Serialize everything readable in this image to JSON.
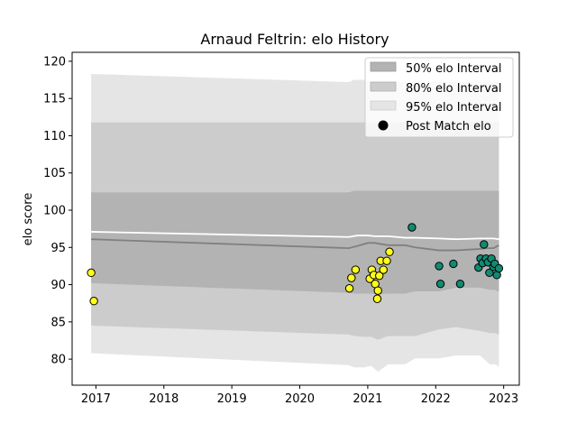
{
  "colors": {
    "band50": "#b3b3b3",
    "band80": "#cccccc",
    "band95": "#e5e5e5",
    "pre_match_line": "#ffffff",
    "post_match_line": "#808080",
    "player_a_points": "#ffff1a",
    "player_b_points": "#128a73",
    "point_edge": "#000000"
  },
  "chart_data": {
    "type": "scatter",
    "title": "Arnaud Feltrin: elo History",
    "xlabel": "",
    "ylabel": "elo score",
    "xlim": [
      2016.65,
      2023.23
    ],
    "ylim": [
      76.5,
      121.2
    ],
    "xticks": [
      2017,
      2018,
      2019,
      2020,
      2021,
      2022,
      2023
    ],
    "yticks": [
      80,
      85,
      90,
      95,
      100,
      105,
      110,
      115,
      120
    ],
    "grid": false,
    "legend_position": "top-right",
    "legend": [
      "50% elo Interval",
      "80% elo Interval",
      "95% elo Interval",
      "Post Match elo"
    ],
    "bands_x": [
      2016.93,
      2020.72,
      2020.8,
      2020.95,
      2021.05,
      2021.15,
      2021.3,
      2021.55,
      2021.7,
      2022.05,
      2022.3,
      2022.65,
      2022.8,
      2022.88,
      2022.93
    ],
    "band95": {
      "upper": [
        118.3,
        117.2,
        117.5,
        117.5,
        117.2,
        117.2,
        117.2,
        117.2,
        117.2,
        117.2,
        117.2,
        117.2,
        117.2,
        117.2,
        117.2
      ],
      "lower": [
        80.8,
        79.2,
        78.9,
        78.9,
        79.1,
        78.3,
        79.3,
        79.3,
        80.1,
        80.1,
        80.5,
        80.5,
        79.3,
        79.3,
        79.0
      ]
    },
    "band80": {
      "upper": [
        111.8,
        111.8,
        111.8,
        111.8,
        111.8,
        111.8,
        111.8,
        111.8,
        111.8,
        111.8,
        111.8,
        111.8,
        111.8,
        111.8,
        111.8
      ],
      "lower": [
        84.5,
        83.3,
        83.1,
        83.0,
        83.0,
        82.6,
        83.1,
        83.1,
        83.1,
        84.0,
        84.3,
        83.8,
        83.5,
        83.5,
        83.3
      ]
    },
    "band50": {
      "upper": [
        102.4,
        102.4,
        102.6,
        102.6,
        102.6,
        102.6,
        102.6,
        102.6,
        102.6,
        102.6,
        102.6,
        102.6,
        102.6,
        102.6,
        102.6
      ],
      "lower": [
        90.2,
        88.9,
        88.8,
        88.8,
        88.8,
        88.7,
        88.8,
        88.8,
        89.1,
        89.1,
        89.6,
        89.6,
        89.3,
        89.3,
        89.0
      ]
    },
    "pre_match_line": {
      "x": [
        2016.93,
        2020.72,
        2020.85,
        2021.0,
        2021.1,
        2021.3,
        2021.55,
        2021.7,
        2022.05,
        2022.3,
        2022.65,
        2022.75,
        2022.85,
        2022.93
      ],
      "y": [
        97.1,
        96.4,
        96.6,
        96.6,
        96.5,
        96.5,
        96.3,
        96.3,
        96.2,
        96.1,
        96.2,
        96.2,
        96.2,
        96.1
      ]
    },
    "post_match_line": {
      "x": [
        2016.93,
        2020.72,
        2020.85,
        2021.0,
        2021.1,
        2021.3,
        2021.55,
        2021.7,
        2022.05,
        2022.3,
        2022.65,
        2022.75,
        2022.85,
        2022.93
      ],
      "y": [
        96.1,
        94.9,
        95.2,
        95.6,
        95.6,
        95.3,
        95.3,
        95.0,
        94.6,
        94.6,
        94.8,
        94.9,
        94.9,
        95.3
      ]
    },
    "series": [
      {
        "points": [
          [
            2016.93,
            91.6
          ],
          [
            2016.97,
            87.8
          ],
          [
            2020.73,
            89.5
          ],
          [
            2020.76,
            90.9
          ],
          [
            2020.82,
            92.0
          ],
          [
            2021.03,
            90.8
          ],
          [
            2021.06,
            92.0
          ],
          [
            2021.09,
            91.3
          ],
          [
            2021.11,
            90.1
          ],
          [
            2021.14,
            88.1
          ],
          [
            2021.15,
            89.2
          ],
          [
            2021.17,
            91.2
          ],
          [
            2021.19,
            93.2
          ],
          [
            2021.23,
            92.0
          ],
          [
            2021.28,
            93.2
          ],
          [
            2021.32,
            94.4
          ]
        ]
      },
      {
        "points": [
          [
            2021.65,
            97.7
          ],
          [
            2022.05,
            92.5
          ],
          [
            2022.07,
            90.1
          ],
          [
            2022.26,
            92.8
          ],
          [
            2022.36,
            90.1
          ],
          [
            2022.63,
            92.3
          ],
          [
            2022.66,
            93.5
          ],
          [
            2022.69,
            92.9
          ],
          [
            2022.71,
            95.4
          ],
          [
            2022.74,
            93.5
          ],
          [
            2022.77,
            93.0
          ],
          [
            2022.79,
            91.6
          ],
          [
            2022.82,
            93.5
          ],
          [
            2022.85,
            92.4
          ],
          [
            2022.87,
            92.8
          ],
          [
            2022.9,
            91.3
          ],
          [
            2022.93,
            92.2
          ]
        ]
      }
    ]
  }
}
